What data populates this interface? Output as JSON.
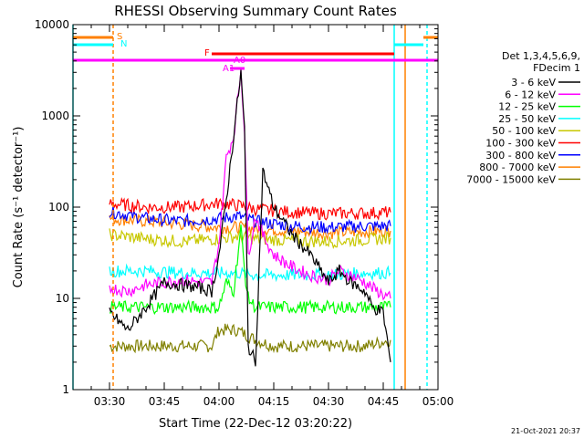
{
  "chart_data": {
    "type": "line",
    "title": "RHESSI Observing Summary Count Rates",
    "xlabel": "Start Time (22-Dec-12 03:20:22)",
    "ylabel": "Count Rate (s⁻¹ detector⁻¹)",
    "y_scale": "log",
    "ylim": [
      1,
      10000
    ],
    "xlim": [
      "03:20",
      "05:00"
    ],
    "x_ticks": [
      "03:30",
      "03:45",
      "04:00",
      "04:15",
      "04:30",
      "04:45",
      "05:00"
    ],
    "y_ticks": [
      "1",
      "10",
      "100",
      "1000",
      "10000"
    ],
    "legend_header": [
      "Det 1,3,4,5,6,9,",
      "FDecim 1"
    ],
    "timestamp": "21-Oct-2021 20:37",
    "flags": [
      {
        "label": "S",
        "color": "#ff8000"
      },
      {
        "label": "N",
        "color": "#00ffff"
      },
      {
        "label": "F",
        "color": "#ff0000"
      },
      {
        "label": "A1",
        "color": "#ff00ff"
      },
      {
        "label": "A0",
        "color": "#ff00ff"
      }
    ],
    "series": [
      {
        "name": "3 - 6 keV",
        "color": "#000000",
        "x": [
          "03:30",
          "03:35",
          "03:40",
          "03:45",
          "03:50",
          "03:55",
          "03:58",
          "04:00",
          "04:02",
          "04:04",
          "04:06",
          "04:07",
          "04:08",
          "04:10",
          "04:12",
          "04:15",
          "04:20",
          "04:25",
          "04:30",
          "04:33",
          "04:36",
          "04:40",
          "04:42",
          "04:45",
          "04:47"
        ],
        "values": [
          7,
          4.5,
          8,
          15,
          14,
          13,
          12,
          30,
          120,
          600,
          3000,
          700,
          3,
          2,
          250,
          100,
          50,
          30,
          15,
          20,
          15,
          12,
          8,
          7,
          2
        ]
      },
      {
        "name": "6 - 12 keV",
        "color": "#ff00ff",
        "x": [
          "03:30",
          "03:35",
          "03:40",
          "03:45",
          "03:50",
          "03:55",
          "03:58",
          "04:00",
          "04:02",
          "04:04",
          "04:06",
          "04:07",
          "04:08",
          "04:10",
          "04:12",
          "04:15",
          "04:20",
          "04:25",
          "04:30",
          "04:33",
          "04:36",
          "04:40",
          "04:42",
          "04:45",
          "04:47"
        ],
        "values": [
          13,
          12,
          14,
          15,
          16,
          15,
          15,
          40,
          350,
          600,
          3200,
          700,
          30,
          80,
          50,
          30,
          22,
          18,
          16,
          20,
          18,
          15,
          13,
          11,
          10
        ]
      },
      {
        "name": "12 - 25 keV",
        "color": "#00ff00",
        "x": [
          "03:30",
          "03:40",
          "03:50",
          "03:58",
          "04:00",
          "04:02",
          "04:04",
          "04:06",
          "04:07",
          "04:08",
          "04:10",
          "04:15",
          "04:20",
          "04:30",
          "04:40",
          "04:47"
        ],
        "values": [
          8,
          8,
          8,
          8,
          8,
          15,
          12,
          60,
          20,
          10,
          8,
          8,
          8,
          8,
          8,
          8
        ]
      },
      {
        "name": "25 - 50 keV",
        "color": "#00ffff",
        "x": [
          "03:30",
          "03:40",
          "03:50",
          "04:00",
          "04:05",
          "04:10",
          "04:20",
          "04:30",
          "04:40",
          "04:47"
        ],
        "values": [
          20,
          20,
          19,
          19,
          19,
          18,
          18,
          18,
          19,
          19
        ]
      },
      {
        "name": "50 - 100 keV",
        "color": "#c8c800",
        "x": [
          "03:30",
          "03:40",
          "03:50",
          "04:00",
          "04:05",
          "04:10",
          "04:20",
          "04:30",
          "04:40",
          "04:47"
        ],
        "values": [
          50,
          45,
          42,
          45,
          48,
          45,
          43,
          42,
          44,
          46
        ]
      },
      {
        "name": "100 - 300 keV",
        "color": "#ff0000",
        "x": [
          "03:30",
          "03:40",
          "03:50",
          "04:00",
          "04:05",
          "04:10",
          "04:20",
          "04:30",
          "04:40",
          "04:47"
        ],
        "values": [
          110,
          100,
          100,
          110,
          105,
          95,
          88,
          85,
          86,
          88
        ]
      },
      {
        "name": "300 - 800 keV",
        "color": "#0000ff",
        "x": [
          "03:30",
          "03:40",
          "03:50",
          "04:00",
          "04:05",
          "04:10",
          "04:20",
          "04:30",
          "04:40",
          "04:47"
        ],
        "values": [
          90,
          75,
          70,
          75,
          80,
          70,
          62,
          60,
          62,
          62
        ]
      },
      {
        "name": "800 - 7000 keV",
        "color": "#ff8000",
        "x": [
          "03:30",
          "03:40",
          "03:50",
          "04:00",
          "04:05",
          "04:10",
          "04:20",
          "04:30",
          "04:40",
          "04:47"
        ],
        "values": [
          75,
          70,
          65,
          60,
          60,
          58,
          55,
          52,
          54,
          55
        ]
      },
      {
        "name": "7000 - 15000 keV",
        "color": "#808000",
        "x": [
          "03:30",
          "03:40",
          "03:50",
          "03:58",
          "04:00",
          "04:05",
          "04:10",
          "04:15",
          "04:20",
          "04:30",
          "04:40",
          "04:47"
        ],
        "values": [
          3,
          3,
          3,
          3,
          4.5,
          4.5,
          3.5,
          3,
          3,
          3,
          3,
          3.5
        ]
      }
    ]
  }
}
